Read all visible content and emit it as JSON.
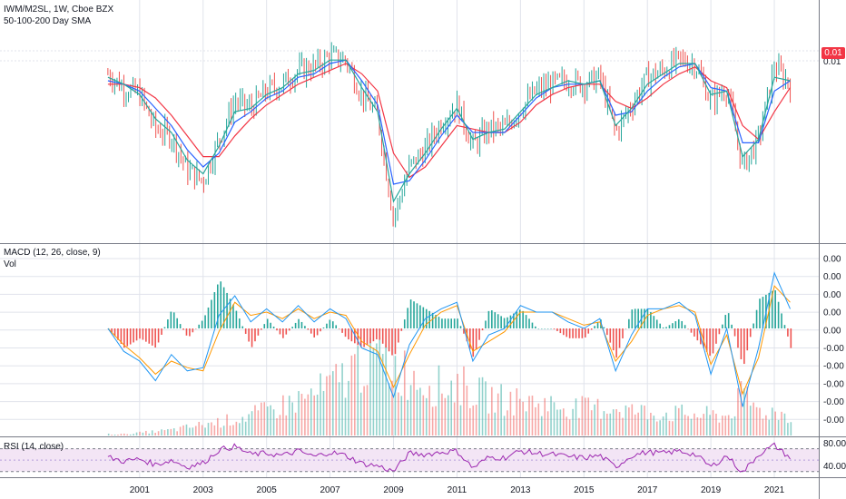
{
  "header": {
    "symbol_line": "IWM/M2SL, 1W, Cboe BZX",
    "study_line": "50-100-200 Day SMA"
  },
  "price_axis": {
    "current_badge": "0.01",
    "current_label": "0.01",
    "badge_color": "#f23645"
  },
  "macd_panel": {
    "title": "MACD (12, 26, close, 9)",
    "subtitle": "Vol",
    "tick_labels": [
      "0.00",
      "0.00",
      "0.00",
      "0.00",
      "0.00",
      "-0.00",
      "-0.00",
      "-0.00",
      "-0.00",
      "-0.00"
    ]
  },
  "rsi_panel": {
    "title": "RSI (14, close)",
    "tick_labels": [
      "80.00",
      "40.00"
    ],
    "fill_color": "#f3e5f5",
    "line_color": "#9c27b0"
  },
  "colors": {
    "up": "#26a69a",
    "down": "#ef5350",
    "sma_fast": "#26a69a",
    "sma_mid": "#2962ff",
    "sma_slow": "#f23645",
    "macd_line": "#2196f3",
    "signal_line": "#ff9800",
    "grid": "#e0e3eb"
  },
  "chart_data": {
    "type": "line",
    "x_tick_labels": [
      "2001",
      "2003",
      "2005",
      "2007",
      "2009",
      "2011",
      "2013",
      "2015",
      "2017",
      "2019",
      "2021"
    ],
    "x": [
      2000.0,
      2000.5,
      2001.0,
      2001.5,
      2002.0,
      2002.5,
      2003.0,
      2003.5,
      2004.0,
      2004.5,
      2005.0,
      2005.5,
      2006.0,
      2006.5,
      2007.0,
      2007.5,
      2008.0,
      2008.5,
      2009.0,
      2009.5,
      2010.0,
      2010.5,
      2011.0,
      2011.5,
      2012.0,
      2012.5,
      2013.0,
      2013.5,
      2014.0,
      2014.5,
      2015.0,
      2015.5,
      2016.0,
      2016.5,
      2017.0,
      2017.5,
      2018.0,
      2018.5,
      2019.0,
      2019.5,
      2020.0,
      2020.5,
      2021.0,
      2021.5
    ],
    "series": [
      {
        "key": "price",
        "values": [
          0.0122,
          0.0118,
          0.0116,
          0.0106,
          0.0104,
          0.0094,
          0.0091,
          0.0103,
          0.0114,
          0.0112,
          0.0117,
          0.0119,
          0.0123,
          0.0124,
          0.0127,
          0.0126,
          0.0116,
          0.011,
          0.008,
          0.0095,
          0.01,
          0.0108,
          0.0113,
          0.0101,
          0.0106,
          0.0106,
          0.0112,
          0.0117,
          0.0119,
          0.012,
          0.0119,
          0.0121,
          0.0105,
          0.0113,
          0.0121,
          0.0123,
          0.0126,
          0.0125,
          0.0114,
          0.0118,
          0.0095,
          0.0103,
          0.0124,
          0.0119
        ]
      },
      {
        "key": "sma_fast",
        "values": [
          0.0121,
          0.0119,
          0.0116,
          0.0109,
          0.0105,
          0.0097,
          0.0093,
          0.0101,
          0.0111,
          0.0112,
          0.0116,
          0.0118,
          0.0122,
          0.0123,
          0.0126,
          0.0126,
          0.0118,
          0.0111,
          0.0085,
          0.0093,
          0.0099,
          0.0106,
          0.0112,
          0.0103,
          0.0105,
          0.0106,
          0.0111,
          0.0116,
          0.0118,
          0.012,
          0.0119,
          0.012,
          0.0107,
          0.0112,
          0.0119,
          0.0122,
          0.0125,
          0.0125,
          0.0116,
          0.0117,
          0.0098,
          0.0103,
          0.0121,
          0.012
        ]
      },
      {
        "key": "sma_mid",
        "values": [
          0.012,
          0.0119,
          0.0117,
          0.0112,
          0.0107,
          0.01,
          0.0095,
          0.0099,
          0.0108,
          0.0111,
          0.0115,
          0.0117,
          0.0121,
          0.0122,
          0.0125,
          0.0126,
          0.012,
          0.0113,
          0.009,
          0.0091,
          0.0097,
          0.0104,
          0.011,
          0.0105,
          0.0105,
          0.0105,
          0.011,
          0.0115,
          0.0118,
          0.0119,
          0.0119,
          0.012,
          0.011,
          0.0111,
          0.0117,
          0.0121,
          0.0124,
          0.0125,
          0.0118,
          0.0117,
          0.0102,
          0.0102,
          0.0117,
          0.012
        ]
      },
      {
        "key": "sma_slow",
        "values": [
          0.0119,
          0.0119,
          0.0118,
          0.0115,
          0.011,
          0.0104,
          0.0098,
          0.0098,
          0.0104,
          0.0109,
          0.0113,
          0.0116,
          0.0119,
          0.0121,
          0.0123,
          0.0125,
          0.0122,
          0.0117,
          0.0099,
          0.0092,
          0.0095,
          0.0101,
          0.0107,
          0.0106,
          0.0105,
          0.0105,
          0.0108,
          0.0113,
          0.0116,
          0.0118,
          0.0119,
          0.0119,
          0.0114,
          0.0112,
          0.0115,
          0.0119,
          0.0122,
          0.0124,
          0.012,
          0.0118,
          0.0107,
          0.0103,
          0.0111,
          0.0118
        ]
      },
      {
        "key": "macd",
        "values": [
          0.0,
          -0.7,
          -1.0,
          -1.6,
          -0.8,
          -1.3,
          -1.2,
          0.4,
          1.0,
          0.2,
          0.6,
          0.2,
          0.7,
          0.2,
          0.6,
          0.3,
          -0.6,
          -0.8,
          -2.1,
          -0.5,
          0.3,
          0.6,
          0.8,
          -1.0,
          -0.2,
          0.0,
          0.7,
          0.5,
          0.5,
          0.2,
          0.0,
          0.3,
          -1.3,
          -0.2,
          0.6,
          0.6,
          0.8,
          0.4,
          -1.4,
          0.0,
          -2.4,
          -0.6,
          1.7,
          0.6
        ]
      },
      {
        "key": "signal",
        "values": [
          0.0,
          -0.5,
          -0.9,
          -1.4,
          -1.0,
          -1.2,
          -1.3,
          -0.1,
          0.8,
          0.4,
          0.5,
          0.3,
          0.6,
          0.3,
          0.5,
          0.4,
          -0.4,
          -0.7,
          -1.8,
          -0.8,
          0.1,
          0.5,
          0.7,
          -0.7,
          -0.4,
          -0.1,
          0.5,
          0.5,
          0.5,
          0.3,
          0.1,
          0.2,
          -1.0,
          -0.4,
          0.4,
          0.6,
          0.7,
          0.5,
          -1.1,
          -0.2,
          -2.0,
          -0.9,
          1.3,
          0.8
        ]
      },
      {
        "key": "volume",
        "values": [
          0.01,
          0.01,
          0.02,
          0.03,
          0.04,
          0.06,
          0.08,
          0.1,
          0.12,
          0.15,
          0.18,
          0.22,
          0.26,
          0.3,
          0.36,
          0.45,
          0.55,
          0.6,
          0.5,
          0.45,
          0.4,
          0.35,
          0.38,
          0.32,
          0.28,
          0.26,
          0.25,
          0.24,
          0.22,
          0.21,
          0.2,
          0.2,
          0.21,
          0.18,
          0.17,
          0.16,
          0.16,
          0.15,
          0.15,
          0.14,
          0.3,
          0.18,
          0.17,
          0.15
        ]
      },
      {
        "key": "rsi",
        "values": [
          55,
          48,
          52,
          42,
          50,
          38,
          45,
          68,
          74,
          60,
          62,
          58,
          66,
          56,
          64,
          58,
          44,
          40,
          30,
          62,
          60,
          64,
          66,
          36,
          55,
          54,
          66,
          62,
          60,
          56,
          54,
          58,
          38,
          58,
          64,
          62,
          66,
          60,
          38,
          58,
          28,
          60,
          76,
          54
        ]
      }
    ],
    "price_ylim": [
      0.0075,
      0.0135
    ],
    "macd_ylim": [
      -3.0,
      2.0
    ],
    "rsi_ylim": [
      20,
      90
    ],
    "rsi_bands": [
      70,
      30
    ],
    "grid": true
  }
}
